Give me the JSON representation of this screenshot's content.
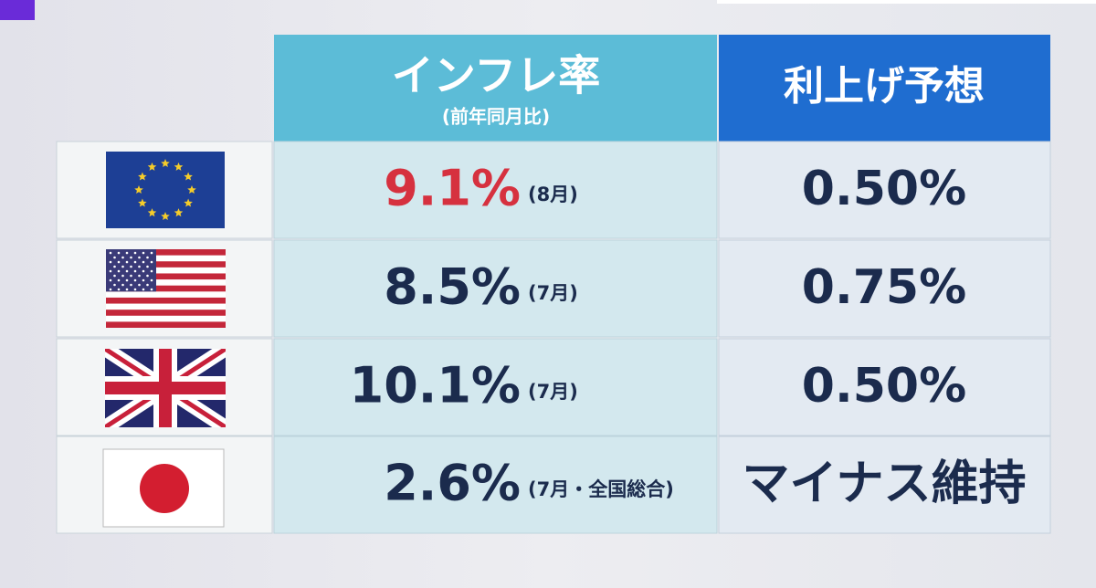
{
  "header": {
    "columns": [
      {
        "title": "インフレ率",
        "subtitle": "(前年同月比)"
      },
      {
        "title": "利上げ予想"
      }
    ]
  },
  "table": {
    "rows": [
      {
        "inflation": "9.1%",
        "month": "(8月)",
        "rate": "0.50%",
        "color": "#d6313f"
      },
      {
        "inflation": "8.5%",
        "month": "(7月)",
        "rate": "0.75%",
        "color": "#1b2b4d"
      },
      {
        "inflation": "10.1%",
        "month": "(7月)",
        "rate": "0.50%",
        "color": "#1b2b4d"
      },
      {
        "inflation": "2.6%",
        "month": "(7月・全国総合)",
        "rate": "マイナス維持",
        "color": "#1b2b4d"
      }
    ]
  }
}
